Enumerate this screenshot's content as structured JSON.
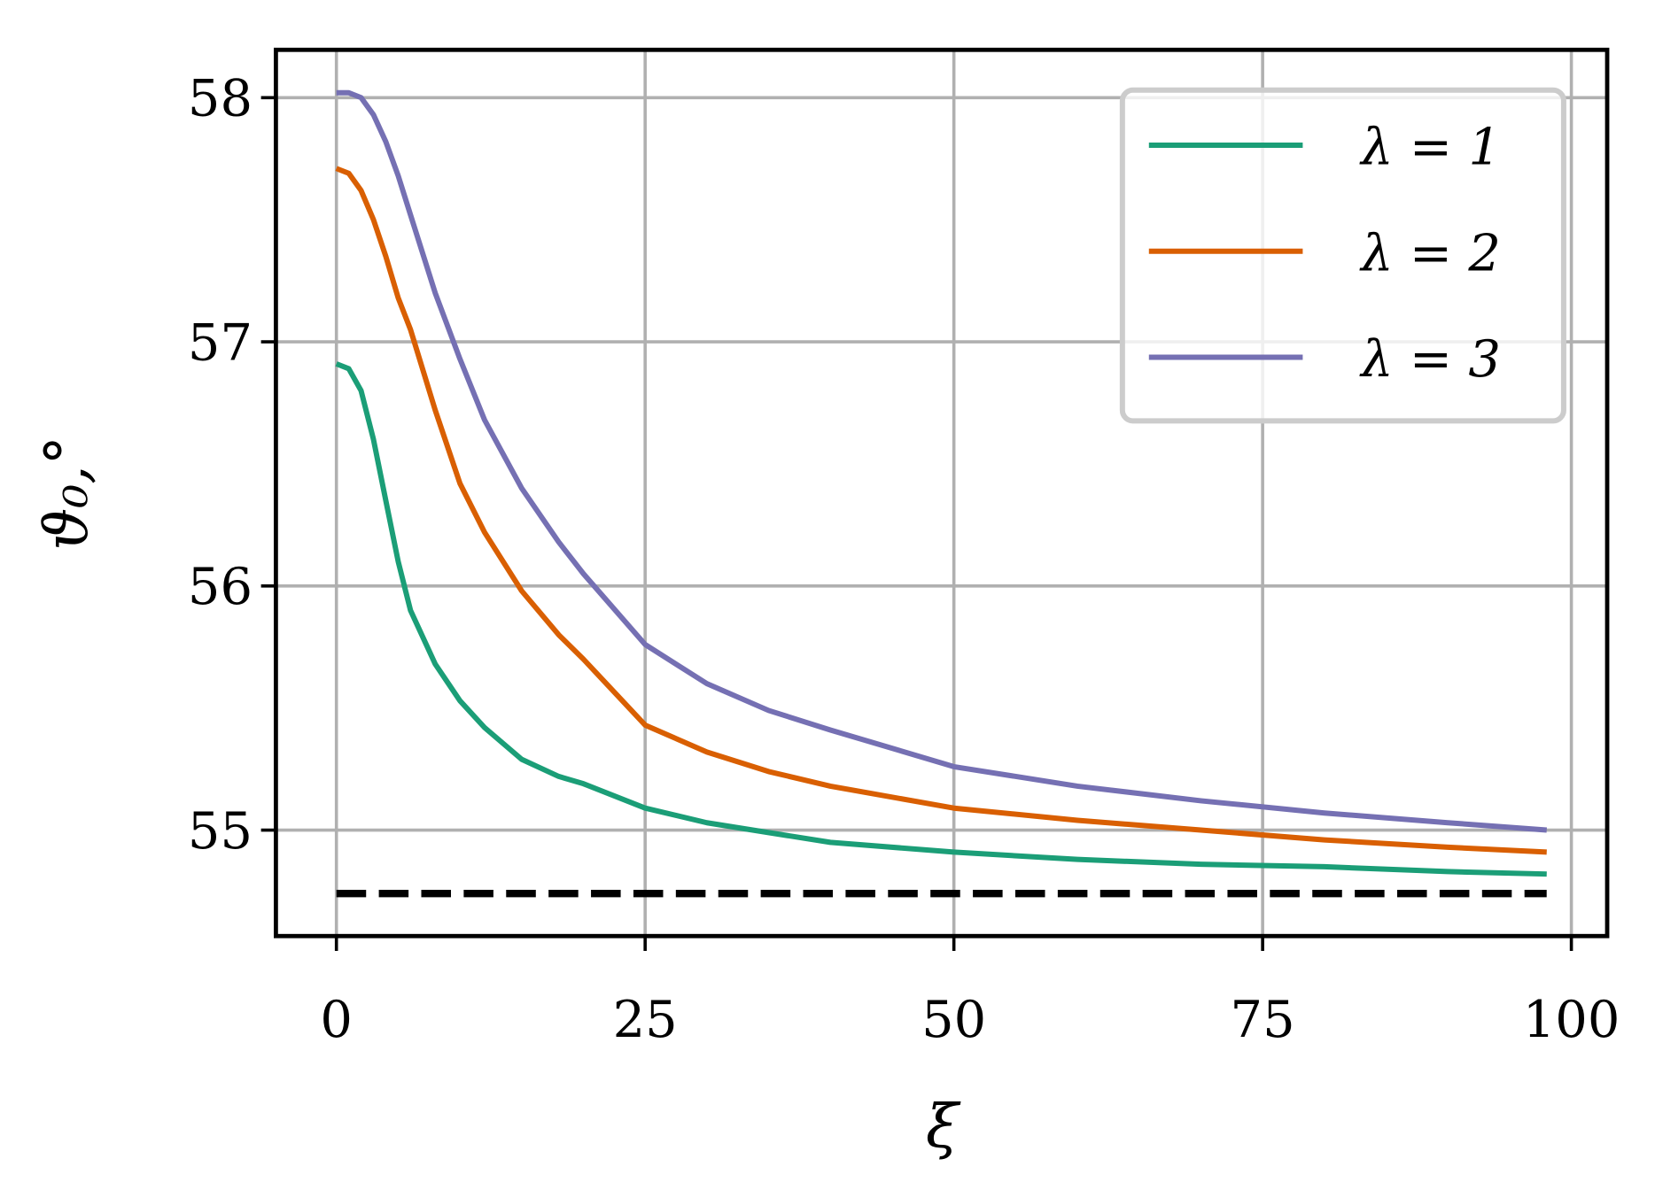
{
  "chart_data": {
    "type": "line",
    "xlabel": "ξ",
    "ylabel": "ϑ₀,°",
    "x": [
      0,
      1,
      2,
      3,
      4,
      5,
      6,
      8,
      10,
      12,
      15,
      18,
      20,
      25,
      30,
      35,
      40,
      50,
      60,
      70,
      80,
      90,
      98
    ],
    "series": [
      {
        "name": "λ = 1",
        "color": "#1b9e77",
        "values": [
          56.91,
          56.89,
          56.8,
          56.6,
          56.35,
          56.1,
          55.9,
          55.68,
          55.53,
          55.42,
          55.29,
          55.22,
          55.19,
          55.09,
          55.03,
          54.99,
          54.95,
          54.91,
          54.88,
          54.86,
          54.85,
          54.83,
          54.82
        ]
      },
      {
        "name": "λ = 2",
        "color": "#d95f02",
        "values": [
          57.71,
          57.69,
          57.62,
          57.5,
          57.35,
          57.18,
          57.05,
          56.72,
          56.42,
          56.22,
          55.98,
          55.8,
          55.7,
          55.43,
          55.32,
          55.24,
          55.18,
          55.09,
          55.04,
          55.0,
          54.96,
          54.93,
          54.91
        ]
      },
      {
        "name": "λ = 3",
        "color": "#7570b3",
        "values": [
          58.02,
          58.02,
          58.0,
          57.93,
          57.82,
          57.68,
          57.52,
          57.2,
          56.93,
          56.68,
          56.4,
          56.18,
          56.05,
          55.76,
          55.6,
          55.49,
          55.41,
          55.26,
          55.18,
          55.12,
          55.07,
          55.03,
          55.0
        ]
      }
    ],
    "hlines": [
      {
        "y": 54.74,
        "xmin": 0,
        "xmax": 98,
        "color": "#000000",
        "dash": true
      }
    ],
    "xlim": [
      -4.9,
      102.9
    ],
    "xticks": [
      0,
      25,
      50,
      75,
      100
    ],
    "ylim": [
      54.566,
      58.196
    ],
    "yticks": [
      55,
      56,
      57,
      58
    ],
    "grid": true,
    "legend": "upper right"
  }
}
